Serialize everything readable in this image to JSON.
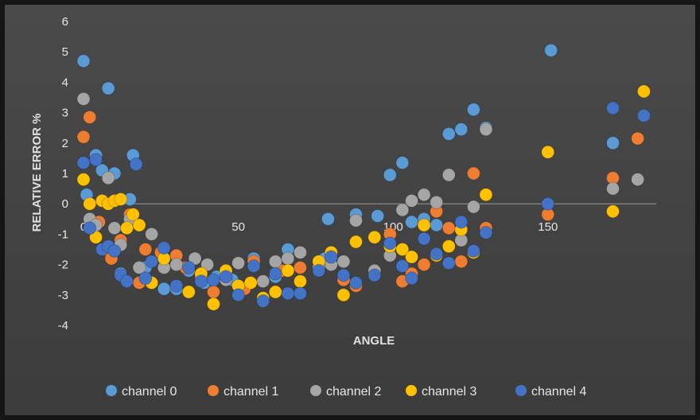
{
  "chart_data": {
    "type": "scatter",
    "title": "",
    "xlabel": "ANGLE",
    "ylabel": "RELATIVE ERROR %",
    "xlim": [
      0,
      185
    ],
    "ylim": [
      -4,
      6
    ],
    "x_ticks": [
      "0",
      "50",
      "100",
      "150"
    ],
    "y_ticks": [
      "-4",
      "-3",
      "-2",
      "-1",
      "0",
      "1",
      "2",
      "3",
      "4",
      "5",
      "6"
    ],
    "grid": false,
    "legend_position": "bottom",
    "series": [
      {
        "name": "channel 0",
        "color": "#5b9bd5",
        "points": [
          [
            0,
            4.7
          ],
          [
            1,
            0.3
          ],
          [
            4,
            1.6
          ],
          [
            6,
            1.1
          ],
          [
            8,
            3.8
          ],
          [
            10,
            1.0
          ],
          [
            12,
            -2.3
          ],
          [
            15,
            0.15
          ],
          [
            16,
            1.6
          ],
          [
            20,
            -2.1
          ],
          [
            26,
            -2.8
          ],
          [
            30,
            -2.8
          ],
          [
            34,
            -2.2
          ],
          [
            39,
            -2.6
          ],
          [
            43,
            -2.4
          ],
          [
            48,
            -2.5
          ],
          [
            55,
            -1.8
          ],
          [
            62,
            -2.4
          ],
          [
            66,
            -1.5
          ],
          [
            78,
            -1.8
          ],
          [
            79,
            -0.5
          ],
          [
            84,
            -2.5
          ],
          [
            88,
            -0.35
          ],
          [
            95,
            -0.4
          ],
          [
            99,
            0.95
          ],
          [
            103,
            1.35
          ],
          [
            106,
            -0.6
          ],
          [
            110,
            -0.5
          ],
          [
            114,
            -0.7
          ],
          [
            118,
            2.3
          ],
          [
            122,
            2.45
          ],
          [
            126,
            3.1
          ],
          [
            130,
            2.5
          ],
          [
            151,
            5.05
          ],
          [
            171,
            2.0
          ]
        ]
      },
      {
        "name": "channel 1",
        "color": "#ed7d31",
        "points": [
          [
            0,
            2.2
          ],
          [
            2,
            2.85
          ],
          [
            5,
            -0.6
          ],
          [
            7,
            -1.5
          ],
          [
            9,
            -1.8
          ],
          [
            12,
            -1.2
          ],
          [
            15,
            -0.35
          ],
          [
            18,
            -2.6
          ],
          [
            20,
            -1.5
          ],
          [
            25,
            -1.6
          ],
          [
            30,
            -1.7
          ],
          [
            33,
            -2.1
          ],
          [
            38,
            -2.4
          ],
          [
            42,
            -2.9
          ],
          [
            46,
            -2.5
          ],
          [
            52,
            -2.8
          ],
          [
            55,
            -1.9
          ],
          [
            64,
            -2.2
          ],
          [
            70,
            -2.1
          ],
          [
            76,
            -2.1
          ],
          [
            84,
            -2.5
          ],
          [
            88,
            -2.7
          ],
          [
            94,
            -2.2
          ],
          [
            99,
            -1.0
          ],
          [
            103,
            -2.55
          ],
          [
            106,
            -2.3
          ],
          [
            110,
            -2.0
          ],
          [
            114,
            -0.25
          ],
          [
            118,
            -0.8
          ],
          [
            122,
            -1.9
          ],
          [
            126,
            1.0
          ],
          [
            130,
            -0.8
          ],
          [
            150,
            -0.35
          ],
          [
            171,
            0.85
          ],
          [
            179,
            2.15
          ]
        ]
      },
      {
        "name": "channel 2",
        "color": "#a5a5a5",
        "points": [
          [
            0,
            3.45
          ],
          [
            2,
            -0.5
          ],
          [
            4,
            -0.7
          ],
          [
            8,
            0.85
          ],
          [
            10,
            -0.8
          ],
          [
            12,
            -1.35
          ],
          [
            15,
            -0.5
          ],
          [
            18,
            -2.1
          ],
          [
            22,
            -1.0
          ],
          [
            26,
            -2.1
          ],
          [
            30,
            -2.0
          ],
          [
            36,
            -1.8
          ],
          [
            40,
            -2.0
          ],
          [
            46,
            -2.5
          ],
          [
            50,
            -1.95
          ],
          [
            58,
            -2.55
          ],
          [
            62,
            -1.9
          ],
          [
            66,
            -1.8
          ],
          [
            70,
            -1.6
          ],
          [
            76,
            -2.1
          ],
          [
            80,
            -2.0
          ],
          [
            84,
            -1.9
          ],
          [
            88,
            -0.55
          ],
          [
            94,
            -2.2
          ],
          [
            99,
            -1.7
          ],
          [
            103,
            -0.2
          ],
          [
            106,
            0.1
          ],
          [
            110,
            0.3
          ],
          [
            114,
            0.05
          ],
          [
            118,
            0.95
          ],
          [
            122,
            -1.2
          ],
          [
            126,
            -0.1
          ],
          [
            130,
            2.45
          ],
          [
            171,
            0.5
          ],
          [
            179,
            0.8
          ]
        ]
      },
      {
        "name": "channel 3",
        "color": "#ffc000",
        "points": [
          [
            0,
            0.8
          ],
          [
            2,
            0.0
          ],
          [
            4,
            -1.1
          ],
          [
            6,
            0.1
          ],
          [
            8,
            0.0
          ],
          [
            10,
            0.1
          ],
          [
            12,
            0.15
          ],
          [
            14,
            -0.8
          ],
          [
            16,
            -0.35
          ],
          [
            18,
            -0.7
          ],
          [
            22,
            -2.6
          ],
          [
            26,
            -1.8
          ],
          [
            34,
            -2.9
          ],
          [
            38,
            -2.3
          ],
          [
            42,
            -3.3
          ],
          [
            46,
            -2.2
          ],
          [
            50,
            -2.7
          ],
          [
            54,
            -2.6
          ],
          [
            58,
            -3.1
          ],
          [
            62,
            -2.9
          ],
          [
            66,
            -2.2
          ],
          [
            70,
            -2.55
          ],
          [
            76,
            -1.9
          ],
          [
            80,
            -1.6
          ],
          [
            84,
            -3.0
          ],
          [
            88,
            -1.25
          ],
          [
            94,
            -1.1
          ],
          [
            99,
            -1.4
          ],
          [
            103,
            -1.5
          ],
          [
            106,
            -1.75
          ],
          [
            110,
            -0.7
          ],
          [
            114,
            -1.7
          ],
          [
            118,
            -1.4
          ],
          [
            122,
            -0.85
          ],
          [
            126,
            -1.6
          ],
          [
            130,
            0.3
          ],
          [
            150,
            1.7
          ],
          [
            171,
            -0.25
          ],
          [
            181,
            3.7
          ]
        ]
      },
      {
        "name": "channel 4",
        "color": "#4472c4",
        "points": [
          [
            0,
            1.35
          ],
          [
            2,
            -0.8
          ],
          [
            4,
            1.45
          ],
          [
            6,
            -1.5
          ],
          [
            8,
            -1.4
          ],
          [
            10,
            -1.55
          ],
          [
            12,
            -2.35
          ],
          [
            14,
            -2.55
          ],
          [
            17,
            1.3
          ],
          [
            20,
            -2.45
          ],
          [
            22,
            -1.9
          ],
          [
            26,
            -1.45
          ],
          [
            30,
            -2.7
          ],
          [
            34,
            -2.1
          ],
          [
            38,
            -2.55
          ],
          [
            42,
            -2.5
          ],
          [
            46,
            -2.4
          ],
          [
            50,
            -3.0
          ],
          [
            55,
            -2.05
          ],
          [
            58,
            -3.2
          ],
          [
            62,
            -2.3
          ],
          [
            66,
            -2.95
          ],
          [
            70,
            -2.95
          ],
          [
            76,
            -2.2
          ],
          [
            80,
            -1.75
          ],
          [
            84,
            -2.35
          ],
          [
            88,
            -2.6
          ],
          [
            94,
            -2.35
          ],
          [
            99,
            -1.3
          ],
          [
            103,
            -2.05
          ],
          [
            106,
            -2.45
          ],
          [
            110,
            -1.15
          ],
          [
            114,
            -1.65
          ],
          [
            118,
            -1.95
          ],
          [
            122,
            -0.6
          ],
          [
            126,
            -1.55
          ],
          [
            130,
            -0.95
          ],
          [
            150,
            0.0
          ],
          [
            171,
            3.15
          ],
          [
            181,
            2.9
          ]
        ]
      }
    ]
  }
}
